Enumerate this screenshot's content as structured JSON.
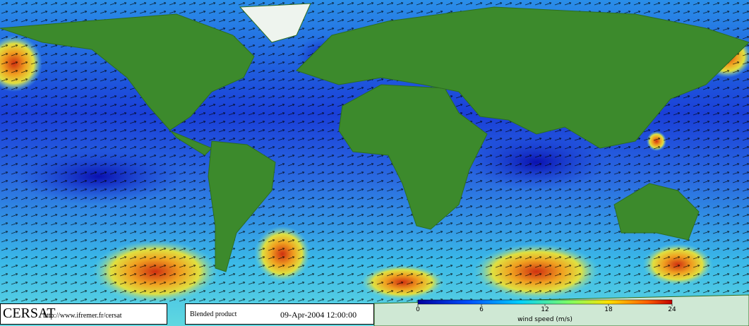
{
  "logo": "CERSAT",
  "url": "http://www.ifremer.fr/cersat",
  "product": "Blended product",
  "date": "09-Apr-2004 12:00:00",
  "colorbar": {
    "label": "wind speed (m/s)",
    "range": [
      0,
      24
    ],
    "ticks": [
      0,
      6,
      12,
      18,
      24
    ]
  }
}
